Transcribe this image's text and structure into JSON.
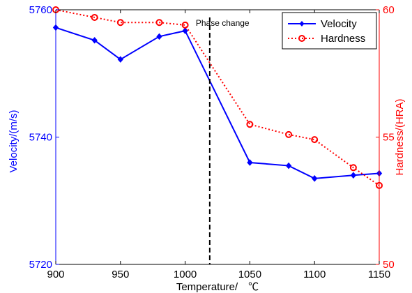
{
  "chart_data": {
    "type": "line",
    "xlabel": "Temperature/　℃",
    "ylabel_left": "Velocity/(m/s)",
    "ylabel_right": "Hardness/(HRA)",
    "xlim": [
      900,
      1150
    ],
    "ylim_left": [
      5720,
      5760
    ],
    "ylim_right": [
      50,
      60
    ],
    "x_ticks": [
      900,
      950,
      1000,
      1050,
      1100,
      1150
    ],
    "y_ticks_left": [
      5720,
      5740,
      5760
    ],
    "y_ticks_right": [
      50,
      55,
      60
    ],
    "series": [
      {
        "name": "Velocity",
        "axis": "left",
        "color": "#0000ff",
        "line_style": "solid",
        "marker": "diamond",
        "x": [
          900,
          930,
          950,
          980,
          1000,
          1050,
          1080,
          1100,
          1130,
          1150
        ],
        "values": [
          5757.2,
          5755.2,
          5752.2,
          5755.8,
          5756.7,
          5736.0,
          5735.5,
          5733.5,
          5734.0,
          5734.3
        ]
      },
      {
        "name": "Hardness",
        "axis": "right",
        "color": "#ff0000",
        "line_style": "dotted",
        "marker": "circle",
        "x": [
          900,
          930,
          950,
          980,
          1000,
          1050,
          1080,
          1100,
          1130,
          1150
        ],
        "values": [
          60.0,
          59.7,
          59.5,
          59.5,
          59.4,
          55.5,
          55.1,
          54.9,
          53.8,
          53.1
        ]
      }
    ],
    "annotations": [
      {
        "text": "Phase change",
        "x": 1019,
        "style": "vertical dashed line"
      }
    ],
    "legend_position": "top-right",
    "grid": false
  }
}
